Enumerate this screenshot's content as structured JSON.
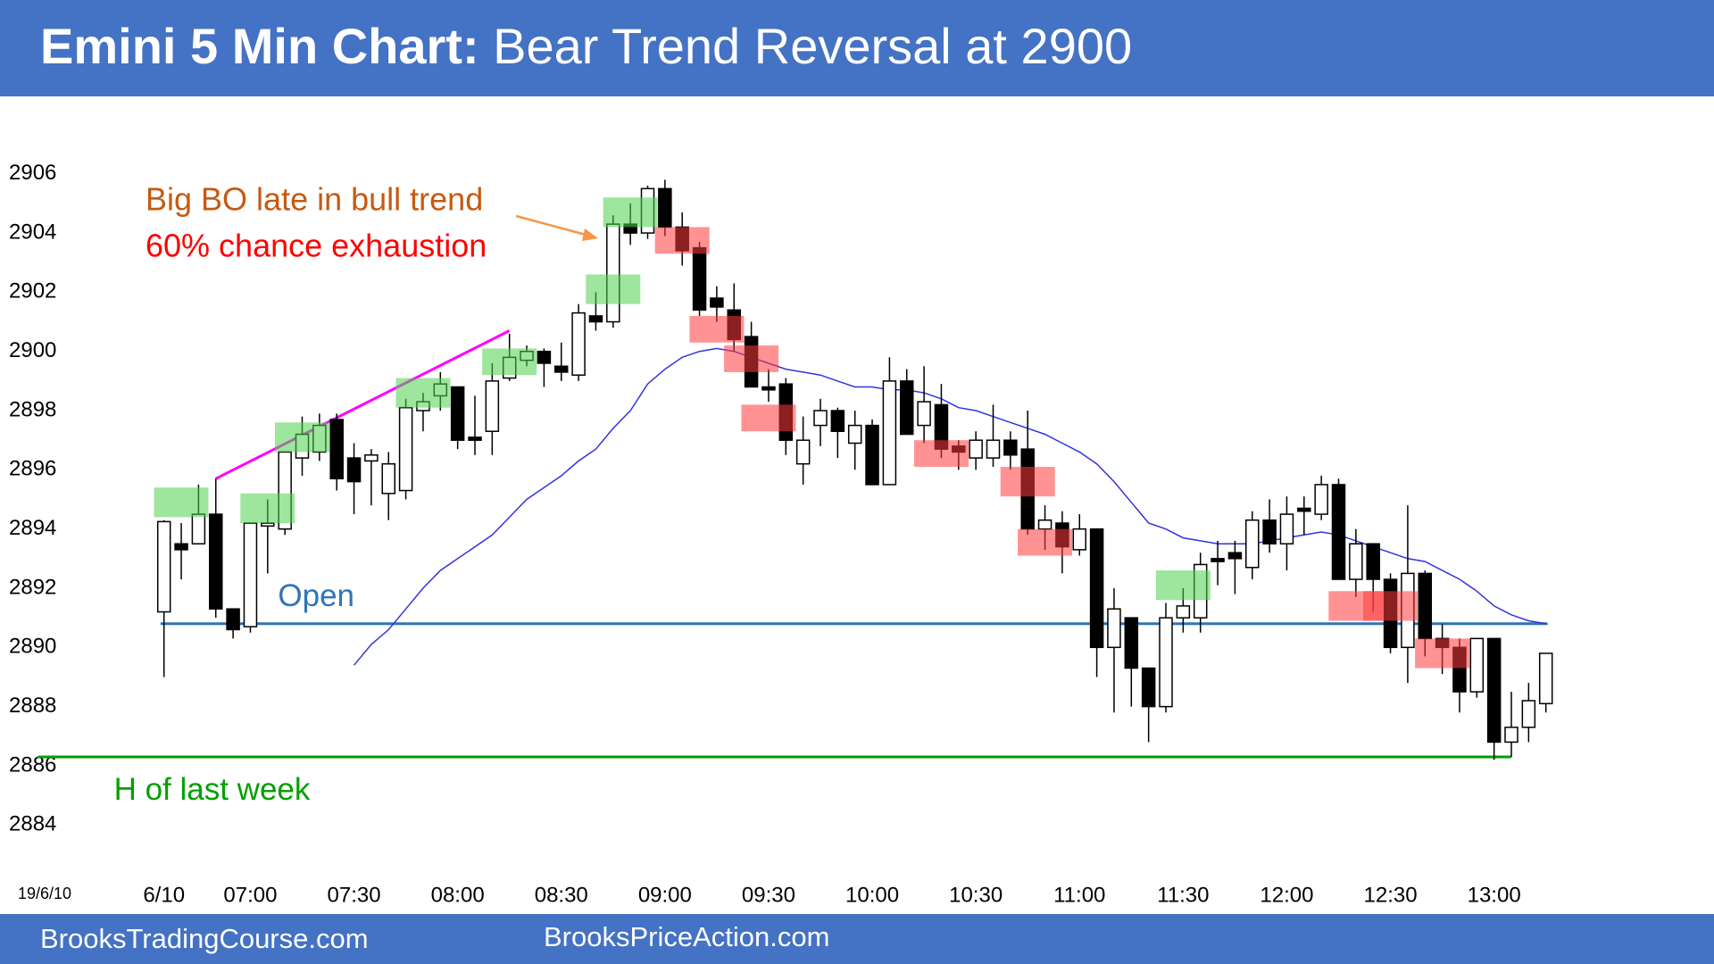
{
  "chart_data": {
    "type": "candlestick",
    "title_bold": "Emini 5 Min Chart:",
    "title": "Bear Trend Reversal at 2900",
    "date_label": "19/6/10",
    "categories": [
      "6/10",
      null,
      null,
      null,
      null,
      "07:00",
      null,
      null,
      null,
      null,
      null,
      "07:30",
      null,
      null,
      null,
      null,
      null,
      "08:00",
      null,
      null,
      null,
      null,
      null,
      "08:30",
      null,
      null,
      null,
      null,
      null,
      "09:00",
      null,
      null,
      null,
      null,
      null,
      "09:30",
      null,
      null,
      null,
      null,
      null,
      "10:00",
      null,
      null,
      null,
      null,
      null,
      "10:30",
      null,
      null,
      null,
      null,
      null,
      "11:00",
      null,
      null,
      null,
      null,
      null,
      "11:30",
      null,
      null,
      null,
      null,
      null,
      "12:00",
      null,
      null,
      null,
      null,
      null,
      "12:30",
      null,
      null,
      null,
      null,
      null,
      "13:00",
      null,
      null,
      null
    ],
    "open": [
      2891.2,
      2893.5,
      2893.5,
      2894.5,
      2891.3,
      2890.7,
      2894.1,
      2894.0,
      2896.4,
      2896.6,
      2897.7,
      2896.4,
      2896.3,
      2895.2,
      2895.3,
      2898.0,
      2898.5,
      2898.8,
      2897.1,
      2897.3,
      2899.1,
      2899.7,
      2900.0,
      2899.5,
      2899.2,
      2901.2,
      2901.0,
      2904.3,
      2904.0,
      2905.5,
      2904.2,
      2903.5,
      2901.8,
      2901.4,
      2900.5,
      2898.8,
      2898.9,
      2896.2,
      2897.5,
      2898.0,
      2896.9,
      2897.5,
      2895.5,
      2899.0,
      2897.5,
      2898.2,
      2896.8,
      2896.4,
      2896.4,
      2897.0,
      2896.7,
      2894.0,
      2894.2,
      2893.3,
      2894.0,
      2890.0,
      2891.0,
      2889.3,
      2888.0,
      2891.0,
      2891.0,
      2893.0,
      2893.2,
      2892.7,
      2894.3,
      2893.5,
      2894.7,
      2894.5,
      2895.5,
      2892.3,
      2893.5,
      2892.3,
      2890.0,
      2892.5,
      2890.3,
      2890.0,
      2888.5,
      2890.3,
      2886.8,
      2887.3,
      2888.1
    ],
    "high": [
      2894.3,
      2894.2,
      2895.5,
      2895.7,
      2891.3,
      2894.2,
      2895.0,
      2896.6,
      2897.8,
      2897.9,
      2897.9,
      2896.9,
      2896.7,
      2896.6,
      2898.4,
      2898.6,
      2899.3,
      2898.8,
      2898.5,
      2899.6,
      2900.6,
      2900.2,
      2900.1,
      2900.3,
      2901.6,
      2902.0,
      2904.6,
      2905.0,
      2905.6,
      2905.8,
      2904.7,
      2903.7,
      2902.2,
      2902.3,
      2901.0,
      2899.4,
      2899.1,
      2897.8,
      2898.4,
      2898.1,
      2898.0,
      2897.7,
      2899.8,
      2899.4,
      2899.5,
      2898.9,
      2897.0,
      2897.3,
      2898.2,
      2897.3,
      2898.0,
      2894.8,
      2894.6,
      2894.5,
      2894.0,
      2892.0,
      2891.0,
      2889.3,
      2891.5,
      2892.0,
      2893.2,
      2893.6,
      2893.6,
      2894.6,
      2895.0,
      2895.1,
      2895.1,
      2895.8,
      2895.7,
      2894.0,
      2893.5,
      2892.5,
      2894.8,
      2892.6,
      2890.8,
      2890.3,
      2890.3,
      2890.3,
      2888.5,
      2888.8,
      2889.8
    ],
    "low": [
      2889.0,
      2892.3,
      2893.5,
      2891.0,
      2890.3,
      2890.5,
      2892.5,
      2893.8,
      2895.8,
      2896.3,
      2895.3,
      2894.5,
      2894.8,
      2894.3,
      2895.0,
      2897.3,
      2898.0,
      2896.7,
      2896.5,
      2896.5,
      2899.0,
      2899.5,
      2898.8,
      2899.0,
      2899.0,
      2900.7,
      2900.8,
      2903.6,
      2903.8,
      2903.9,
      2902.9,
      2901.2,
      2901.0,
      2900.0,
      2898.8,
      2898.3,
      2896.5,
      2895.5,
      2896.8,
      2896.4,
      2896.0,
      2895.5,
      2895.5,
      2897.2,
      2896.9,
      2896.4,
      2896.0,
      2896.0,
      2896.1,
      2896.0,
      2893.8,
      2893.3,
      2892.5,
      2893.1,
      2889.0,
      2887.8,
      2888.0,
      2886.8,
      2887.8,
      2890.5,
      2890.5,
      2892.1,
      2891.8,
      2892.3,
      2893.2,
      2892.6,
      2893.8,
      2894.3,
      2892.3,
      2891.7,
      2891.2,
      2889.8,
      2888.8,
      2889.7,
      2889.1,
      2887.8,
      2888.3,
      2886.2,
      2886.3,
      2886.8,
      2887.8
    ],
    "close": [
      2894.25,
      2893.3,
      2894.5,
      2891.3,
      2890.6,
      2894.2,
      2894.2,
      2896.6,
      2897.2,
      2897.5,
      2895.7,
      2895.6,
      2896.5,
      2896.2,
      2898.1,
      2898.3,
      2898.9,
      2897.0,
      2897.0,
      2899.0,
      2899.8,
      2900.0,
      2899.6,
      2899.3,
      2901.3,
      2901.0,
      2904.3,
      2904.0,
      2905.5,
      2904.2,
      2903.4,
      2901.4,
      2901.5,
      2900.4,
      2898.8,
      2898.7,
      2897.0,
      2897.0,
      2898.0,
      2897.3,
      2897.5,
      2895.5,
      2899.0,
      2897.2,
      2898.3,
      2896.7,
      2896.6,
      2897.0,
      2897.0,
      2896.5,
      2894.0,
      2894.3,
      2893.4,
      2894.0,
      2890.0,
      2891.3,
      2889.3,
      2888.0,
      2891.0,
      2891.4,
      2892.8,
      2892.9,
      2893.0,
      2894.3,
      2893.5,
      2894.5,
      2894.6,
      2895.5,
      2892.3,
      2893.5,
      2892.3,
      2890.0,
      2892.5,
      2890.3,
      2890.0,
      2888.5,
      2890.3,
      2886.8,
      2887.3,
      2888.2,
      2889.8
    ],
    "up_color": "#ffffff",
    "down_color": "#000000",
    "moving_average": {
      "color": "#3333dd",
      "values": [
        null,
        null,
        null,
        null,
        null,
        null,
        null,
        null,
        null,
        null,
        null,
        2889.4,
        2890.1,
        2890.6,
        2891.3,
        2892.0,
        2892.6,
        2893.0,
        2893.4,
        2893.8,
        2894.4,
        2895.0,
        2895.4,
        2895.8,
        2896.3,
        2896.7,
        2897.4,
        2898.0,
        2898.9,
        2899.4,
        2899.8,
        2900.0,
        2900.1,
        2900.0,
        2899.8,
        2899.6,
        2899.4,
        2899.3,
        2899.2,
        2899.0,
        2898.8,
        2898.8,
        2898.7,
        2898.7,
        2898.6,
        2898.4,
        2898.1,
        2898.0,
        2897.8,
        2897.6,
        2897.4,
        2897.2,
        2896.9,
        2896.6,
        2896.2,
        2895.6,
        2894.9,
        2894.2,
        2894.0,
        2893.7,
        2893.6,
        2893.5,
        2893.5,
        2893.5,
        2893.6,
        2893.7,
        2893.8,
        2893.9,
        2893.8,
        2893.6,
        2893.4,
        2893.2,
        2893.0,
        2892.9,
        2892.6,
        2892.3,
        2891.9,
        2891.4,
        2891.1,
        2890.9,
        2890.8
      ]
    },
    "trendline": {
      "color": "#ff00ff",
      "x": [
        3,
        20
      ],
      "values": [
        2895.7,
        2900.7
      ]
    },
    "signal_boxes": [
      {
        "color": "#4fcf4f",
        "x": [
          1,
          6,
          8,
          15,
          20,
          26,
          27,
          59
        ],
        "high": [
          2895.4,
          2895.2,
          2897.6,
          2899.1,
          2900.1,
          2902.6,
          2905.2,
          2892.6
        ],
        "low": [
          2894.4,
          2894.2,
          2896.6,
          2898.1,
          2899.2,
          2901.6,
          2904.2,
          2891.6
        ]
      },
      {
        "color": "#ff3b3b",
        "x": [
          30,
          32,
          34,
          35,
          45,
          50,
          51,
          69,
          71,
          74
        ],
        "high": [
          2904.2,
          2901.2,
          2900.2,
          2898.2,
          2897.0,
          2896.1,
          2894.0,
          2891.9,
          2891.9,
          2890.3
        ],
        "low": [
          2903.3,
          2900.3,
          2899.3,
          2897.3,
          2896.1,
          2895.1,
          2893.1,
          2890.9,
          2890.9,
          2889.3
        ]
      }
    ],
    "reference_lines": [
      {
        "label": "Open",
        "value": 2890.8,
        "color": "#2e75b6"
      },
      {
        "label": "H of last week",
        "value": 2886.3,
        "color": "#00a000"
      }
    ],
    "annotations": [
      {
        "text": "Big BO late in bull trend",
        "color": "#c55a11"
      },
      {
        "text": "60% chance exhaustion",
        "color": "#ff0000"
      }
    ],
    "ylim": [
      2882.5,
      2907.5
    ],
    "yticks": [
      2884,
      2886,
      2888,
      2890,
      2892,
      2894,
      2896,
      2898,
      2900,
      2902,
      2904,
      2906
    ],
    "grid": false
  },
  "footer": [
    "BrooksTradingCourse.com",
    "BrooksPriceAction.com"
  ]
}
